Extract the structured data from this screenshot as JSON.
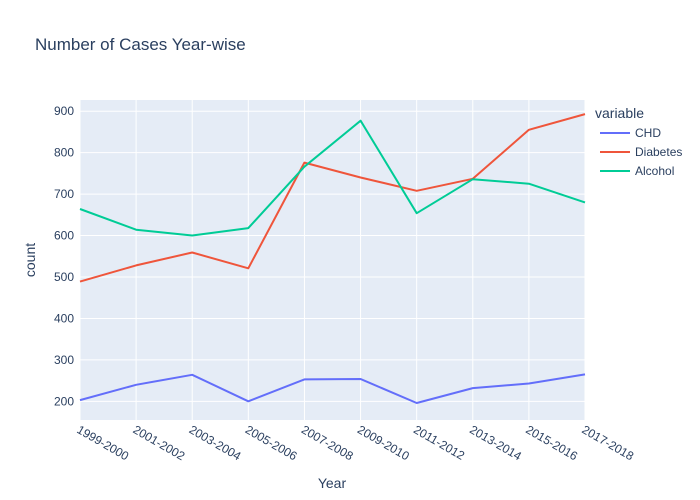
{
  "chart_data": {
    "type": "line",
    "title": "Number of Cases Year-wise",
    "xlabel": "Year",
    "ylabel": "count",
    "categories": [
      "1999-2000",
      "2001-2002",
      "2003-2004",
      "2005-2006",
      "2007-2008",
      "2009-2010",
      "2011-2012",
      "2013-2014",
      "2015-2016",
      "2017-2018"
    ],
    "series": [
      {
        "name": "CHD",
        "color": "#636efa",
        "values": [
          203,
          240,
          264,
          200,
          253,
          254,
          196,
          232,
          243,
          265
        ]
      },
      {
        "name": "Diabetes",
        "color": "#ef553b",
        "values": [
          489,
          528,
          559,
          521,
          776,
          740,
          708,
          737,
          855,
          893
        ]
      },
      {
        "name": "Alcohol",
        "color": "#00cc96",
        "values": [
          664,
          614,
          600,
          618,
          766,
          877,
          654,
          736,
          725,
          680
        ]
      }
    ],
    "ylim": [
      155,
      927
    ],
    "yticks": [
      200,
      300,
      400,
      500,
      600,
      700,
      800,
      900
    ],
    "legend_title": "variable",
    "legend_position": "right",
    "grid": true
  }
}
